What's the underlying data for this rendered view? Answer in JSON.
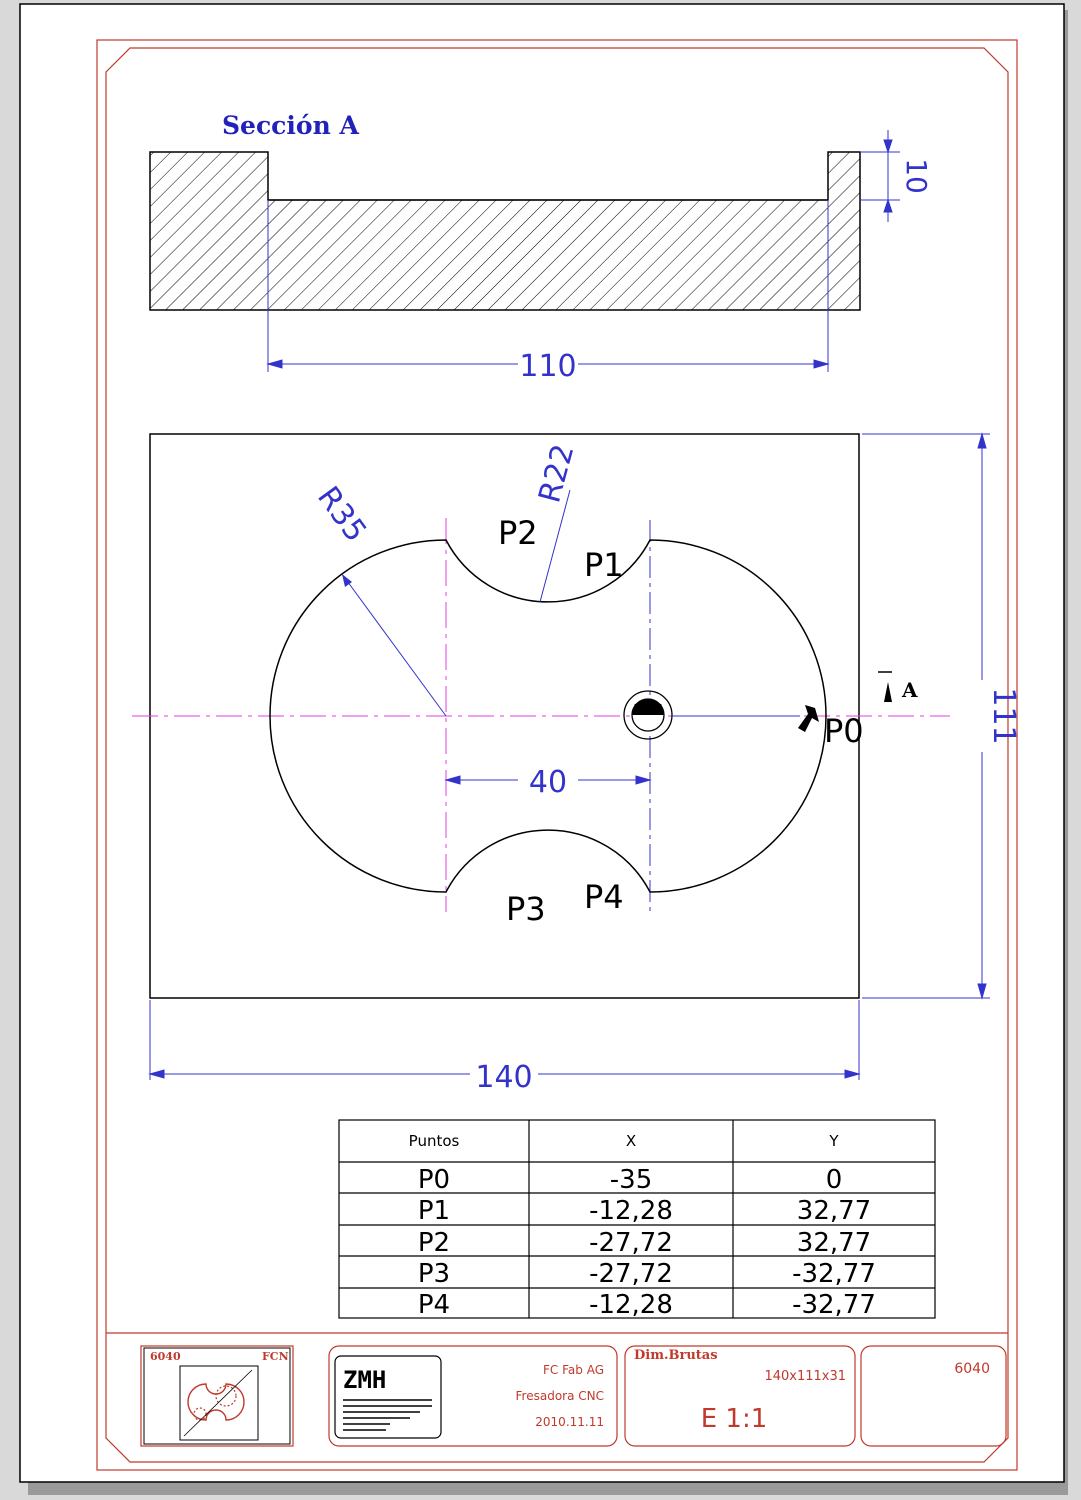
{
  "section": {
    "title": "Sección A",
    "dim_depth": "10",
    "dim_width": "110"
  },
  "plan": {
    "dim_radius_large": "R35",
    "dim_radius_small": "R22",
    "dim_center_distance": "40",
    "dim_width": "140",
    "dim_height": "111",
    "section_marker": "A",
    "points": {
      "p0": "P0",
      "p1": "P1",
      "p2": "P2",
      "p3": "P3",
      "p4": "P4"
    }
  },
  "coordinates_table": {
    "headers": [
      "Puntos",
      "X",
      "Y"
    ],
    "rows": [
      [
        "P0",
        "-35",
        "0"
      ],
      [
        "P1",
        "-12,28",
        "32,77"
      ],
      [
        "P2",
        "-27,72",
        "32,77"
      ],
      [
        "P3",
        "-27,72",
        "-32,77"
      ],
      [
        "P4",
        "-12,28",
        "-32,77"
      ]
    ]
  },
  "title_block": {
    "thumb_code": "6040",
    "thumb_tag": "FCN",
    "logo_text": "ZMH",
    "company": "FC Fab AG",
    "machine": "Fresadora CNC",
    "date": "2010.11.11",
    "raw_dims_label": "Dim.Brutas",
    "raw_dims_value": "140x111x31",
    "scale": "E 1:1",
    "part_number": "6040"
  },
  "colors": {
    "frame": "#c0392b",
    "dimension": "#3333cc",
    "centerline": "#e040e0",
    "geometry": "#000000"
  }
}
